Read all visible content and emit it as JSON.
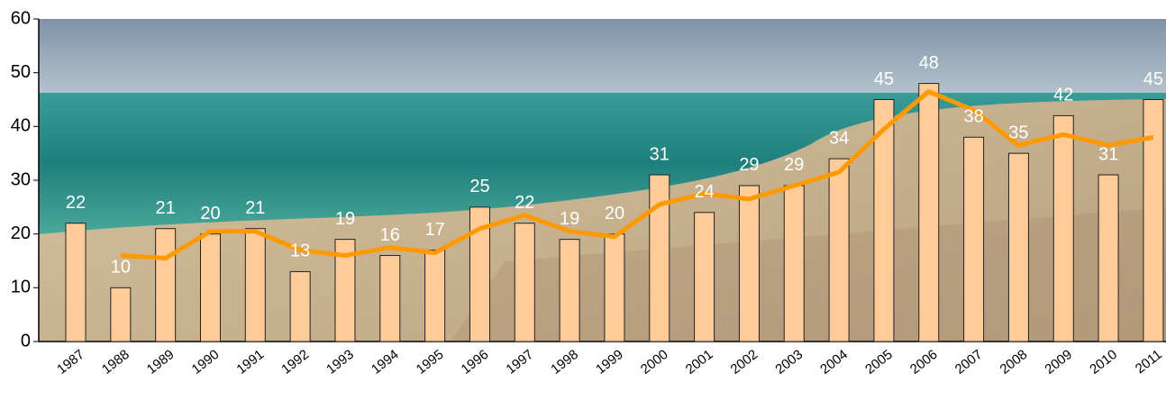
{
  "chart_data": {
    "type": "bar",
    "categories": [
      "1987",
      "1988",
      "1989",
      "1990",
      "1991",
      "1992",
      "1993",
      "1994",
      "1995",
      "1996",
      "1997",
      "1998",
      "1999",
      "2000",
      "2001",
      "2002",
      "2003",
      "2004",
      "2005",
      "2006",
      "2007",
      "2008",
      "2009",
      "2010",
      "2011"
    ],
    "series": [
      {
        "type": "bar",
        "color": "#ffcc99",
        "values": [
          22,
          10,
          21,
          20,
          21,
          13,
          19,
          16,
          17,
          25,
          22,
          19,
          20,
          31,
          24,
          29,
          29,
          34,
          45,
          48,
          38,
          35,
          42,
          31,
          45
        ]
      },
      {
        "type": "line",
        "color": "#ff9900",
        "values": [
          null,
          16,
          15.5,
          20.5,
          20.5,
          17,
          16,
          17.5,
          16.5,
          21,
          23.5,
          20.5,
          19.5,
          25.5,
          27.5,
          26.5,
          29,
          31.5,
          39.5,
          46.5,
          43,
          36.5,
          38.5,
          36.5,
          38
        ]
      }
    ],
    "ylim": [
      0,
      60
    ],
    "yticks": [
      0,
      10,
      20,
      30,
      40,
      50,
      60
    ]
  }
}
